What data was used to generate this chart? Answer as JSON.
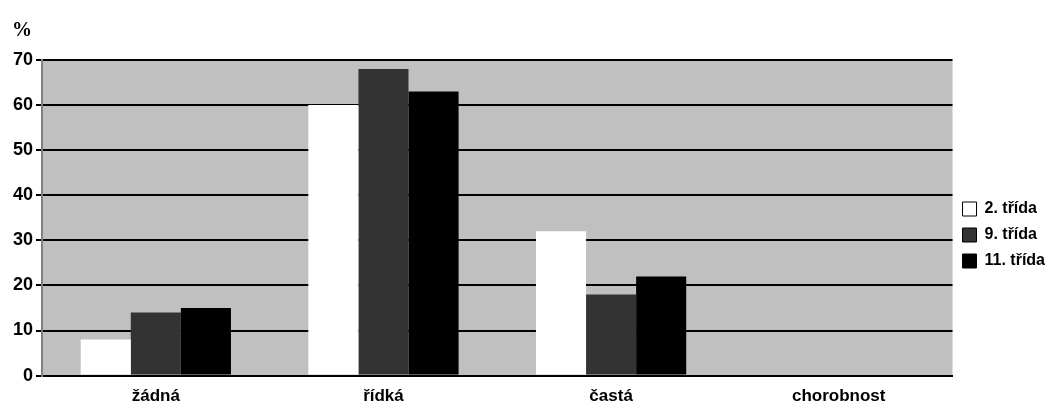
{
  "chart_data": {
    "type": "bar",
    "ylabel": "%",
    "categories": [
      "žádná",
      "řídká",
      "častá",
      "chorobnost"
    ],
    "series": [
      {
        "name": "2. třída",
        "color": "#ffffff",
        "values": [
          8,
          60,
          32,
          null
        ]
      },
      {
        "name": "9. třída",
        "color": "#333333",
        "values": [
          14,
          68,
          18,
          null
        ]
      },
      {
        "name": "11. třída",
        "color": "#000000",
        "values": [
          15,
          63,
          22,
          null
        ]
      }
    ],
    "ylim": [
      0,
      70
    ],
    "yticks": [
      0,
      10,
      20,
      30,
      40,
      50,
      60,
      70
    ],
    "grid": "y",
    "legend": "right"
  }
}
